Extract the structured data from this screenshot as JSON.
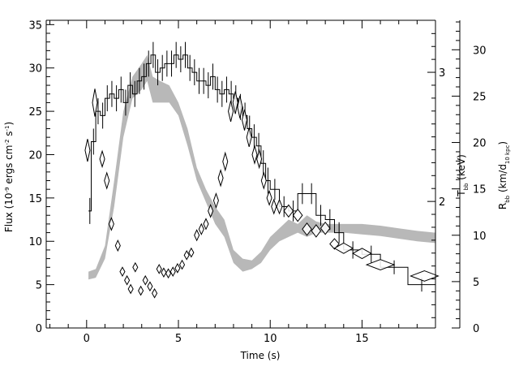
{
  "chart_data": {
    "type": "line",
    "title": "",
    "xlabel": "Time (s)",
    "ylabel": {
      "main": "Flux (10",
      "exp": "-9",
      "units_a": " ergs cm",
      "exp_cm": "-2",
      "units_b": " s",
      "exp_s": "-1",
      "close": ")"
    },
    "y2label": {
      "main": "T",
      "sub": "bb",
      "units": " (keV)"
    },
    "y3label": {
      "main": "R",
      "sub": "bb",
      "units_open": " (km/d",
      "sub2": "10 kpc",
      "close": ")"
    },
    "xlim": [
      -2.2,
      19.0
    ],
    "ylim": [
      0,
      35.5
    ],
    "y2_ticks": [
      {
        "label": "2",
        "value": 2,
        "y_flux": 14.6
      },
      {
        "label": "3",
        "value": 3,
        "y_flux": 29.5
      }
    ],
    "y3_ticks": [
      {
        "label": "0",
        "value": 0
      },
      {
        "label": "5",
        "value": 5
      },
      {
        "label": "10",
        "value": 10
      },
      {
        "label": "15",
        "value": 15
      },
      {
        "label": "20",
        "value": 20
      },
      {
        "label": "25",
        "value": 25
      },
      {
        "label": "30",
        "value": 30
      }
    ],
    "y3_scale": 1.07,
    "x_ticks": [
      {
        "label": "0",
        "value": 0
      },
      {
        "label": "5",
        "value": 5
      },
      {
        "label": "10",
        "value": 10
      },
      {
        "label": "15",
        "value": 15
      }
    ],
    "y_ticks": [
      {
        "label": "0",
        "value": 0
      },
      {
        "label": "5",
        "value": 5
      },
      {
        "label": "10",
        "value": 10
      },
      {
        "label": "15",
        "value": 15
      },
      {
        "label": "20",
        "value": 20
      },
      {
        "label": "25",
        "value": 25
      },
      {
        "label": "30",
        "value": 30
      },
      {
        "label": "35",
        "value": 35
      }
    ],
    "series": [
      {
        "style": "histogram",
        "color": "#000000",
        "edges": [
          0.1,
          0.25,
          0.5,
          0.75,
          1.0,
          1.25,
          1.5,
          1.75,
          2.0,
          2.25,
          2.5,
          2.75,
          3.0,
          3.25,
          3.5,
          3.75,
          4.0,
          4.25,
          4.5,
          4.75,
          5.0,
          5.25,
          5.5,
          5.75,
          6.0,
          6.25,
          6.5,
          6.75,
          7.0,
          7.25,
          7.5,
          7.75,
          8.0,
          8.25,
          8.5,
          8.75,
          9.0,
          9.25,
          9.5,
          9.75,
          10.0,
          10.5,
          11.0,
          11.5,
          12.0,
          12.5,
          13.0,
          13.5,
          14.0,
          15.0,
          16.0,
          17.5,
          19.0
        ],
        "values": [
          13.5,
          21.5,
          25.0,
          24.5,
          26.5,
          27.0,
          26.5,
          27.5,
          26.0,
          28.0,
          27.0,
          28.5,
          29.0,
          30.5,
          31.5,
          29.5,
          30.0,
          30.5,
          30.5,
          31.5,
          31.0,
          31.5,
          30.0,
          29.5,
          28.5,
          28.5,
          28.0,
          29.0,
          27.5,
          27.0,
          27.5,
          27.0,
          26.5,
          25.5,
          24.5,
          23.0,
          22.0,
          21.0,
          19.0,
          17.0,
          16.0,
          14.0,
          13.5,
          15.5,
          15.5,
          13.0,
          12.5,
          11.0,
          9.0,
          8.5,
          7.0,
          5.0
        ],
        "err": [
          1.5,
          1.5,
          1.5,
          1.5,
          1.5,
          1.5,
          1.5,
          1.5,
          1.5,
          1.5,
          1.5,
          1.5,
          1.5,
          1.5,
          1.5,
          1.5,
          1.5,
          1.5,
          1.5,
          1.5,
          1.5,
          1.5,
          1.5,
          1.5,
          1.5,
          1.5,
          1.5,
          1.5,
          1.5,
          1.5,
          1.5,
          1.5,
          1.5,
          1.5,
          1.5,
          1.5,
          1.5,
          1.5,
          1.5,
          1.5,
          1.2,
          1.2,
          1.2,
          1.2,
          1.2,
          1.2,
          1.2,
          1.2,
          1.0,
          1.0,
          0.8,
          0.8
        ]
      },
      {
        "style": "band",
        "color": "#b8b8b8",
        "x": [
          0.1,
          0.5,
          1.0,
          1.5,
          2.0,
          2.5,
          3.0,
          3.3,
          3.6,
          4.0,
          4.5,
          5.0,
          5.5,
          6.0,
          6.5,
          7.0,
          7.5,
          8.0,
          8.5,
          9.0,
          9.5,
          10.0,
          10.5,
          11.0,
          11.5,
          12.0,
          12.5,
          13.0,
          13.5,
          14.0,
          15.0,
          16.0,
          17.0,
          18.0,
          19.0
        ],
        "lower": [
          5.6,
          5.8,
          8.0,
          14.0,
          22.0,
          26.5,
          27.5,
          28.5,
          26.0,
          26.0,
          26.0,
          24.5,
          21.0,
          17.0,
          14.5,
          12.0,
          10.5,
          7.5,
          6.5,
          6.8,
          7.5,
          9.0,
          10.0,
          10.5,
          11.0,
          10.5,
          11.0,
          11.0,
          11.0,
          11.0,
          10.8,
          10.6,
          10.3,
          10.0,
          9.8
        ],
        "upper": [
          6.5,
          6.8,
          9.5,
          17.0,
          25.0,
          29.0,
          30.5,
          31.5,
          29.0,
          28.5,
          28.0,
          26.0,
          23.0,
          18.5,
          16.0,
          14.0,
          12.5,
          9.0,
          8.0,
          7.8,
          8.8,
          10.5,
          11.5,
          12.5,
          12.0,
          13.0,
          12.3,
          12.0,
          12.0,
          12.0,
          12.0,
          11.8,
          11.5,
          11.2,
          11.0
        ]
      },
      {
        "style": "diamonds",
        "color": "#000000",
        "x": [
          0.05,
          0.45,
          0.85,
          1.1,
          1.35,
          1.7,
          1.95,
          2.2,
          2.4,
          2.65,
          2.95,
          3.2,
          3.45,
          3.7,
          3.95,
          4.2,
          4.45,
          4.7,
          4.95,
          5.2,
          5.45,
          5.7,
          6.0,
          6.25,
          6.5,
          6.75,
          7.05,
          7.3,
          7.55,
          7.85,
          8.1,
          8.35,
          8.6,
          8.85,
          9.15,
          9.4,
          9.65,
          9.95,
          10.2,
          10.5,
          11.0,
          11.5,
          12.0,
          12.5,
          13.0,
          13.5,
          14.0,
          15.0,
          16.0,
          18.4
        ],
        "y": [
          20.5,
          26.0,
          19.5,
          17.0,
          12.0,
          9.5,
          6.5,
          5.5,
          4.5,
          7.0,
          4.3,
          5.5,
          4.8,
          4.0,
          6.8,
          6.4,
          6.3,
          6.5,
          6.9,
          7.3,
          8.4,
          8.7,
          10.7,
          11.4,
          12.0,
          13.5,
          14.7,
          17.3,
          19.2,
          25.0,
          26.0,
          25.5,
          24.0,
          22.0,
          20.0,
          19.5,
          17.0,
          15.0,
          14.0,
          14.0,
          13.5,
          13.0,
          11.4,
          11.2,
          11.5,
          9.7,
          9.2,
          8.6,
          7.3,
          6.0
        ],
        "dx": [
          0.12,
          0.12,
          0.12,
          0.12,
          0.12,
          0.12,
          0.12,
          0.12,
          0.12,
          0.12,
          0.12,
          0.12,
          0.12,
          0.12,
          0.12,
          0.12,
          0.12,
          0.12,
          0.12,
          0.12,
          0.12,
          0.12,
          0.12,
          0.12,
          0.12,
          0.12,
          0.12,
          0.12,
          0.12,
          0.12,
          0.12,
          0.12,
          0.12,
          0.12,
          0.12,
          0.12,
          0.12,
          0.12,
          0.12,
          0.15,
          0.25,
          0.25,
          0.25,
          0.25,
          0.25,
          0.25,
          0.5,
          0.5,
          0.75,
          0.75
        ],
        "dy": [
          1.3,
          1.6,
          0.9,
          0.9,
          0.7,
          0.6,
          0.5,
          0.5,
          0.5,
          0.5,
          0.5,
          0.5,
          0.5,
          0.5,
          0.5,
          0.5,
          0.5,
          0.5,
          0.5,
          0.5,
          0.5,
          0.5,
          0.6,
          0.6,
          0.6,
          0.7,
          0.8,
          0.9,
          1.0,
          1.2,
          1.3,
          1.3,
          1.2,
          1.1,
          1.0,
          1.0,
          0.9,
          0.8,
          0.8,
          0.8,
          0.7,
          0.7,
          0.7,
          0.7,
          0.7,
          0.6,
          0.6,
          0.6,
          0.6,
          0.6
        ]
      }
    ],
    "grid": false,
    "legend": "none"
  }
}
